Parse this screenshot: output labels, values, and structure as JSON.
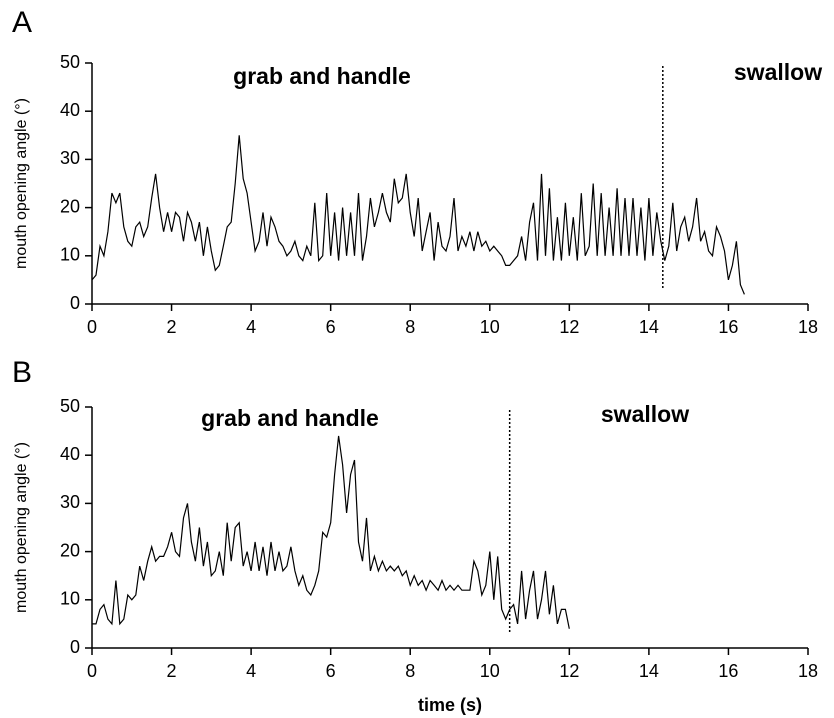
{
  "chart_data": [
    {
      "type": "line",
      "panel_label": "A",
      "y_label": "mouth opening angle (°)",
      "annotations": [
        "grab and handle",
        "swallow"
      ],
      "marker_x": 14.35,
      "color": "#000000",
      "xlim": [
        0,
        18
      ],
      "xticks": [
        0,
        2,
        4,
        6,
        8,
        10,
        12,
        14,
        16,
        18
      ],
      "ylim": [
        0,
        50
      ],
      "yticks": [
        0,
        10,
        20,
        30,
        40,
        50
      ],
      "x": [
        0,
        0.1,
        0.2,
        0.3,
        0.4,
        0.5,
        0.6,
        0.7,
        0.8,
        0.9,
        1,
        1.1,
        1.2,
        1.3,
        1.4,
        1.5,
        1.6,
        1.7,
        1.8,
        1.9,
        2,
        2.1,
        2.2,
        2.3,
        2.4,
        2.5,
        2.6,
        2.7,
        2.8,
        2.9,
        3,
        3.1,
        3.2,
        3.3,
        3.4,
        3.5,
        3.6,
        3.7,
        3.8,
        3.9,
        4,
        4.1,
        4.2,
        4.3,
        4.4,
        4.5,
        4.6,
        4.7,
        4.8,
        4.9,
        5,
        5.1,
        5.2,
        5.3,
        5.4,
        5.5,
        5.6,
        5.7,
        5.8,
        5.9,
        6,
        6.1,
        6.2,
        6.3,
        6.4,
        6.5,
        6.6,
        6.7,
        6.8,
        6.9,
        7,
        7.1,
        7.2,
        7.3,
        7.4,
        7.5,
        7.6,
        7.7,
        7.8,
        7.9,
        8,
        8.1,
        8.2,
        8.3,
        8.4,
        8.5,
        8.6,
        8.7,
        8.8,
        8.9,
        9,
        9.1,
        9.2,
        9.3,
        9.4,
        9.5,
        9.6,
        9.7,
        9.8,
        9.9,
        10,
        10.1,
        10.2,
        10.3,
        10.4,
        10.5,
        10.6,
        10.7,
        10.8,
        10.9,
        11,
        11.1,
        11.2,
        11.3,
        11.4,
        11.5,
        11.6,
        11.7,
        11.8,
        11.9,
        12,
        12.1,
        12.2,
        12.3,
        12.4,
        12.5,
        12.6,
        12.7,
        12.8,
        12.9,
        13,
        13.1,
        13.2,
        13.3,
        13.4,
        13.5,
        13.6,
        13.7,
        13.8,
        13.9,
        14,
        14.1,
        14.2,
        14.3,
        14.4,
        14.5,
        14.6,
        14.7,
        14.8,
        14.9,
        15,
        15.1,
        15.2,
        15.3,
        15.4,
        15.5,
        15.6,
        15.7,
        15.8,
        15.9,
        16,
        16.1,
        16.2,
        16.3,
        16.4
      ],
      "values": [
        5,
        6,
        12,
        10,
        15,
        23,
        21,
        23,
        16,
        13,
        12,
        16,
        17,
        14,
        16,
        22,
        27,
        20,
        15,
        19,
        15,
        19,
        18,
        13,
        19,
        17,
        13,
        17,
        10,
        16,
        11,
        7,
        8,
        12,
        16,
        17,
        25,
        35,
        26,
        23,
        17,
        11,
        13,
        19,
        12,
        18,
        16,
        13,
        12,
        10,
        11,
        13,
        10,
        9,
        12,
        10,
        21,
        9,
        10,
        23,
        10,
        19,
        9,
        20,
        10,
        19,
        10,
        23,
        9,
        14,
        22,
        16,
        19,
        23,
        19,
        17,
        26,
        21,
        22,
        27,
        19,
        14,
        22,
        11,
        15,
        19,
        9,
        17,
        12,
        11,
        14,
        22,
        11,
        14,
        12,
        15,
        11,
        15,
        12,
        13,
        11,
        12,
        11,
        10,
        8,
        8,
        9,
        10,
        14,
        9,
        17,
        21,
        9,
        27,
        10,
        24,
        9,
        18,
        9,
        21,
        10,
        18,
        9,
        23,
        10,
        12,
        25,
        10,
        23,
        10,
        20,
        10,
        24,
        10,
        22,
        10,
        22,
        10,
        20,
        9,
        22,
        10,
        19,
        13,
        9,
        12,
        21,
        11,
        16,
        18,
        13,
        16,
        22,
        13,
        15,
        11,
        10,
        16,
        14,
        11,
        5,
        8,
        13,
        4,
        2
      ]
    },
    {
      "type": "line",
      "panel_label": "B",
      "y_label": "mouth opening angle (°)",
      "x_label": "time (s)",
      "annotations": [
        "grab and handle",
        "swallow"
      ],
      "marker_x": 10.5,
      "color": "#000000",
      "xlim": [
        0,
        18
      ],
      "xticks": [
        0,
        2,
        4,
        6,
        8,
        10,
        12,
        14,
        16,
        18
      ],
      "ylim": [
        0,
        50
      ],
      "yticks": [
        0,
        10,
        20,
        30,
        40,
        50
      ],
      "x": [
        0,
        0.1,
        0.2,
        0.3,
        0.4,
        0.5,
        0.6,
        0.7,
        0.8,
        0.9,
        1,
        1.1,
        1.2,
        1.3,
        1.4,
        1.5,
        1.6,
        1.7,
        1.8,
        1.9,
        2,
        2.1,
        2.2,
        2.3,
        2.4,
        2.5,
        2.6,
        2.7,
        2.8,
        2.9,
        3,
        3.1,
        3.2,
        3.3,
        3.4,
        3.5,
        3.6,
        3.7,
        3.8,
        3.9,
        4,
        4.1,
        4.2,
        4.3,
        4.4,
        4.5,
        4.6,
        4.7,
        4.8,
        4.9,
        5,
        5.1,
        5.2,
        5.3,
        5.4,
        5.5,
        5.6,
        5.7,
        5.8,
        5.9,
        6,
        6.1,
        6.2,
        6.3,
        6.4,
        6.5,
        6.6,
        6.7,
        6.8,
        6.9,
        7,
        7.1,
        7.2,
        7.3,
        7.4,
        7.5,
        7.6,
        7.7,
        7.8,
        7.9,
        8,
        8.1,
        8.2,
        8.3,
        8.4,
        8.5,
        8.6,
        8.7,
        8.8,
        8.9,
        9,
        9.1,
        9.2,
        9.3,
        9.4,
        9.5,
        9.6,
        9.7,
        9.8,
        9.9,
        10,
        10.1,
        10.2,
        10.3,
        10.4,
        10.5,
        10.6,
        10.7,
        10.8,
        10.9,
        11,
        11.1,
        11.2,
        11.3,
        11.4,
        11.5,
        11.6,
        11.7,
        11.8,
        11.9,
        12
      ],
      "values": [
        5,
        5,
        8,
        9,
        6,
        5,
        14,
        5,
        6,
        11,
        10,
        11,
        17,
        14,
        18,
        21,
        18,
        19,
        19,
        21,
        24,
        20,
        19,
        27,
        30,
        22,
        18,
        25,
        17,
        22,
        15,
        16,
        20,
        15,
        26,
        18,
        25,
        26,
        17,
        20,
        16,
        22,
        16,
        21,
        15,
        22,
        16,
        20,
        16,
        17,
        21,
        16,
        13,
        15,
        12,
        11,
        13,
        16,
        24,
        23,
        26,
        36,
        44,
        38,
        28,
        36,
        39,
        22,
        18,
        27,
        16,
        19,
        16,
        18,
        16,
        17,
        16,
        17,
        15,
        16,
        13,
        15,
        13,
        14,
        12,
        14,
        13,
        12,
        14,
        12,
        13,
        12,
        13,
        12,
        12,
        12,
        18,
        16,
        11,
        13,
        20,
        10,
        19,
        8,
        6,
        8,
        9,
        5,
        16,
        6,
        12,
        16,
        6,
        10,
        16,
        7,
        13,
        5,
        8,
        8,
        4
      ]
    }
  ]
}
